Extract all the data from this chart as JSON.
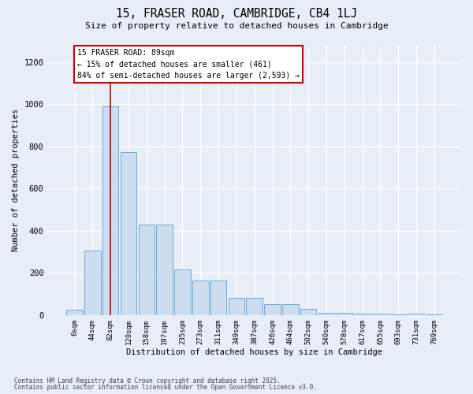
{
  "title_line1": "15, FRASER ROAD, CAMBRIDGE, CB4 1LJ",
  "title_line2": "Size of property relative to detached houses in Cambridge",
  "xlabel": "Distribution of detached houses by size in Cambridge",
  "ylabel": "Number of detached properties",
  "categories": [
    "6sqm",
    "44sqm",
    "82sqm",
    "120sqm",
    "158sqm",
    "197sqm",
    "235sqm",
    "273sqm",
    "311sqm",
    "349sqm",
    "387sqm",
    "426sqm",
    "464sqm",
    "502sqm",
    "540sqm",
    "578sqm",
    "617sqm",
    "655sqm",
    "693sqm",
    "731sqm",
    "769sqm"
  ],
  "values": [
    25,
    305,
    990,
    775,
    430,
    430,
    215,
    165,
    165,
    80,
    80,
    50,
    50,
    30,
    10,
    10,
    5,
    5,
    2,
    5,
    2
  ],
  "bar_color": "#ccddf0",
  "bar_edgecolor": "#6aaad4",
  "background_color": "#e8eef7",
  "plot_bg_color": "#e8eef7",
  "grid_color": "#ffffff",
  "vline_x_index": 2,
  "vline_color": "#cc0000",
  "annotation_text": "15 FRASER ROAD: 89sqm\n← 15% of detached houses are smaller (461)\n84% of semi-detached houses are larger (2,593) →",
  "annotation_box_facecolor": "#ffffff",
  "annotation_box_edgecolor": "#cc0000",
  "ylim": [
    0,
    1280
  ],
  "yticks": [
    0,
    200,
    400,
    600,
    800,
    1000,
    1200
  ],
  "footnote1": "Contains HM Land Registry data © Crown copyright and database right 2025.",
  "footnote2": "Contains public sector information licensed under the Open Government Licence v3.0."
}
